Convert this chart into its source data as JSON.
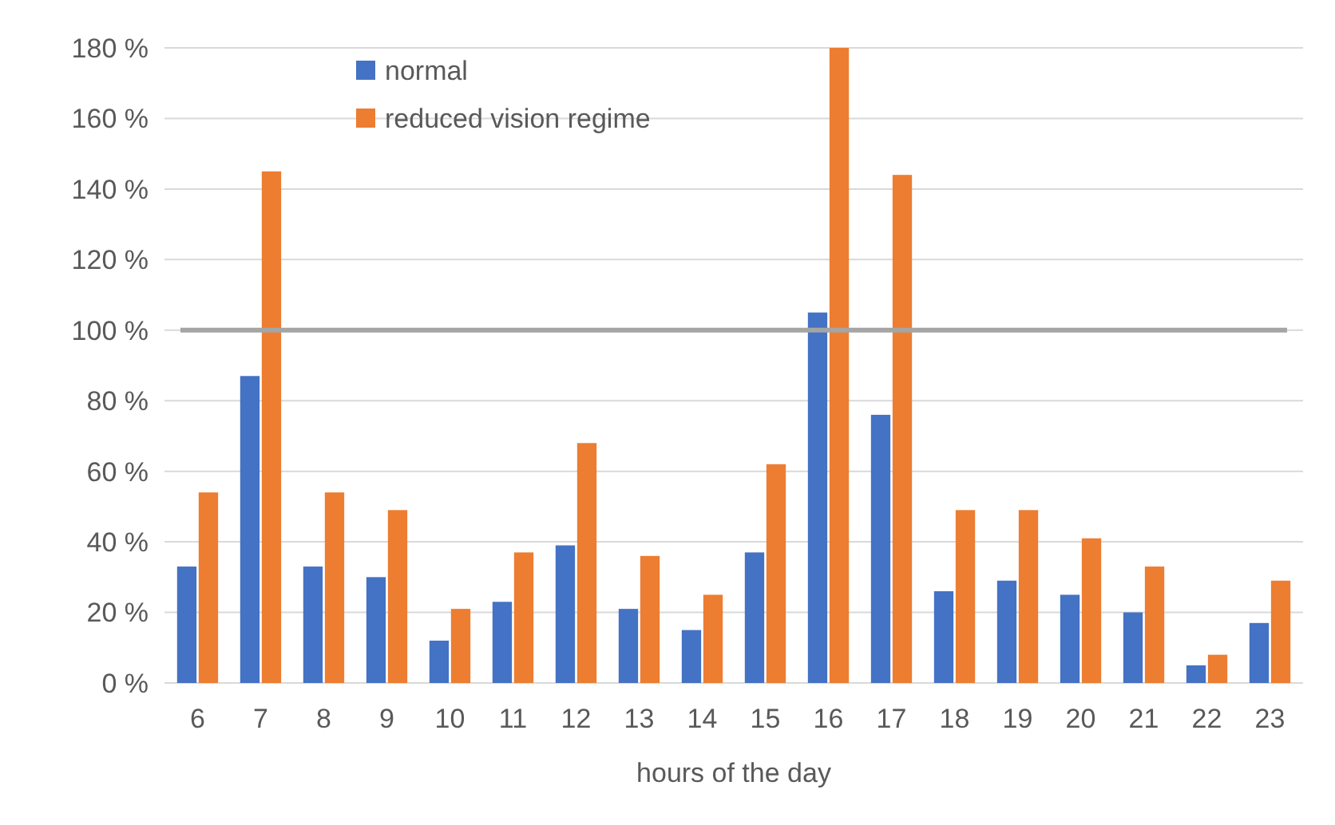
{
  "chart_data": {
    "type": "bar",
    "xlabel": "hours of the day",
    "categories": [
      "6",
      "7",
      "8",
      "9",
      "10",
      "11",
      "12",
      "13",
      "14",
      "15",
      "16",
      "17",
      "18",
      "19",
      "20",
      "21",
      "22",
      "23"
    ],
    "series": [
      {
        "name": "normal",
        "color": "#4472c4",
        "values": [
          33,
          87,
          33,
          30,
          12,
          23,
          39,
          21,
          15,
          37,
          105,
          76,
          26,
          29,
          25,
          20,
          5,
          17
        ]
      },
      {
        "name": "reduced vision regime",
        "color": "#ed7d31",
        "values": [
          54,
          145,
          54,
          49,
          21,
          37,
          68,
          36,
          25,
          62,
          180,
          144,
          49,
          49,
          41,
          33,
          8,
          29
        ]
      }
    ],
    "ylim": [
      0,
      180
    ],
    "yticks": [
      {
        "value": 0,
        "label": "0 %"
      },
      {
        "value": 20,
        "label": "20 %"
      },
      {
        "value": 40,
        "label": "40 %"
      },
      {
        "value": 60,
        "label": "60 %"
      },
      {
        "value": 80,
        "label": "80 %"
      },
      {
        "value": 100,
        "label": "100 %"
      },
      {
        "value": 120,
        "label": "120 %"
      },
      {
        "value": 140,
        "label": "140 %"
      },
      {
        "value": 160,
        "label": "160 %"
      },
      {
        "value": 180,
        "label": "180 %"
      }
    ],
    "grid": "y",
    "legend": "top left",
    "ref_lines": [
      {
        "axis": "y",
        "value": 100,
        "color": "#a5a5a5"
      }
    ]
  }
}
